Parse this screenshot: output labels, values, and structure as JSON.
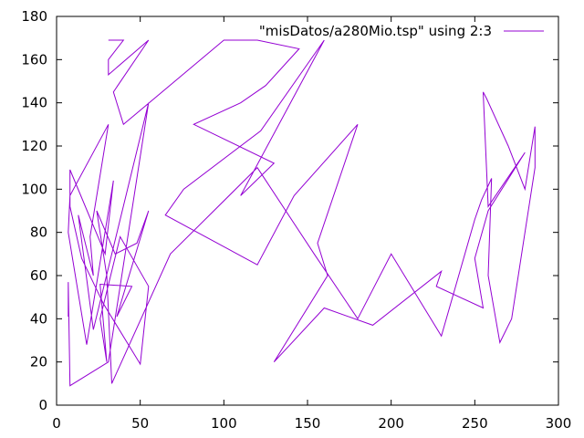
{
  "chart_data": {
    "type": "line",
    "title": "",
    "xlabel": "",
    "ylabel": "",
    "xlim": [
      0,
      300
    ],
    "ylim": [
      0,
      180
    ],
    "xticks": [
      0,
      50,
      100,
      150,
      200,
      250,
      300
    ],
    "yticks": [
      0,
      20,
      40,
      60,
      80,
      100,
      120,
      140,
      160,
      180
    ],
    "grid": false,
    "legend_position": "top-right",
    "series": [
      {
        "name": "\"misDatos/a280Mio.tsp\" using 2:3",
        "color": "#9400d3",
        "x": [
          31,
          40,
          31,
          31,
          55,
          34,
          40,
          100,
          120,
          145,
          125,
          110,
          82,
          130,
          110,
          160,
          122,
          76,
          65,
          120,
          142,
          180,
          156,
          162,
          130,
          160,
          189,
          230,
          227,
          255,
          250,
          258,
          280,
          258,
          255,
          257,
          270,
          280,
          286,
          286,
          280,
          272,
          265,
          258,
          260,
          254,
          250,
          230,
          200,
          180,
          154,
          120,
          68,
          33,
          30,
          24,
          35,
          48,
          55,
          36,
          45,
          26,
          30,
          26,
          38,
          55,
          50,
          28,
          15,
          8,
          8,
          29,
          34,
          18,
          7,
          8,
          31,
          20,
          22,
          13,
          22,
          55,
          31,
          8,
          7,
          7
        ],
        "y": [
          169,
          169,
          160,
          153,
          169,
          145,
          130,
          169,
          169,
          165,
          148,
          140,
          130,
          112,
          97,
          169,
          127,
          100,
          88,
          65,
          97,
          130,
          75,
          60,
          20,
          45,
          37,
          62,
          55,
          45,
          68,
          90,
          117,
          92,
          145,
          142,
          120,
          100,
          129,
          110,
          80,
          40,
          29,
          60,
          105,
          95,
          86,
          32,
          70,
          40,
          70,
          110,
          70,
          10,
          60,
          90,
          70,
          75,
          90,
          41,
          55,
          56,
          20,
          40,
          78,
          55,
          19,
          47,
          68,
          92,
          109,
          70,
          104,
          28,
          80,
          97,
          130,
          78,
          60,
          88,
          35,
          140,
          20,
          9,
          57,
          41
        ]
      }
    ]
  }
}
